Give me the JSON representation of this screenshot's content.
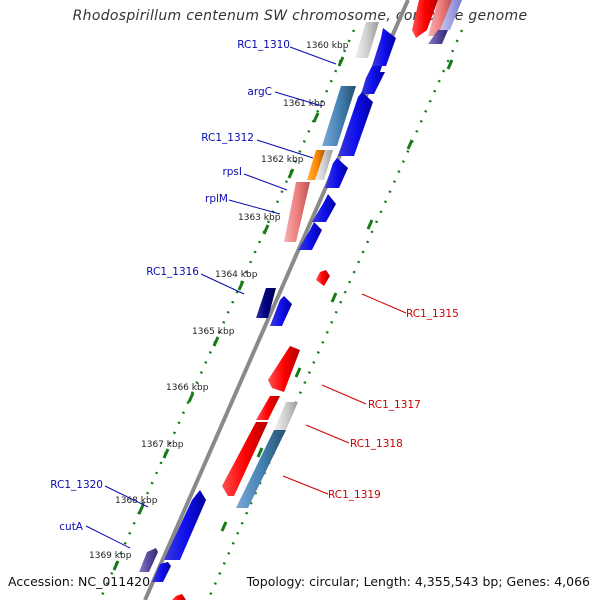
{
  "title": "Rhodospirillum centenum SW chromosome, complete genome",
  "accession": "Accession: NC_011420",
  "topology": "Topology: circular; Length: 4,355,543 bp; Genes: 4,066",
  "colors": {
    "forward_label": "#0a0ab0",
    "reverse_label": "#cc0000",
    "backbone": "#8a8a8a",
    "tick": "#1a7a1a"
  },
  "kbp_ticks": [
    "1360 kbp",
    "1361 kbp",
    "1362 kbp",
    "1363 kbp",
    "1364 kbp",
    "1365 kbp",
    "1366 kbp",
    "1367 kbp",
    "1368 kbp",
    "1369 kbp"
  ],
  "forward_gene_labels": [
    "RC1_1310",
    "argC",
    "RC1_1312",
    "rpsI",
    "rplM",
    "RC1_1316",
    "RC1_1320",
    "cutA"
  ],
  "reverse_gene_labels": [
    "RC1_1315",
    "RC1_1317",
    "RC1_1318",
    "RC1_1319"
  ]
}
